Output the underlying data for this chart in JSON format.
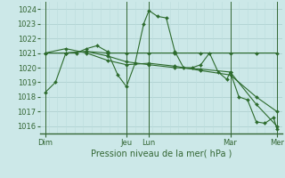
{
  "background_color": "#cce8e8",
  "grid_color_h": "#aacccc",
  "grid_color_v": "#bbdddd",
  "day_line_color": "#336633",
  "line_color": "#2d6b2d",
  "ylabel_text": "Pression niveau de la mer( hPa )",
  "xlim": [
    0,
    7.0
  ],
  "ylim": [
    1015.5,
    1024.5
  ],
  "yticks": [
    1016,
    1017,
    1018,
    1019,
    1020,
    1021,
    1022,
    1023,
    1024
  ],
  "day_positions": [
    0.15,
    2.5,
    3.15,
    5.5,
    6.85
  ],
  "day_labels": [
    "Dim",
    "Jeu",
    "Lun",
    "Mar",
    "Mer"
  ],
  "day_vlines": [
    0.15,
    2.5,
    3.15,
    5.5,
    6.85
  ],
  "num_vcols": 28,
  "series1": {
    "x": [
      0.15,
      0.45,
      0.75,
      1.05,
      1.35,
      1.65,
      1.95,
      2.25,
      2.5,
      2.75,
      3.0,
      3.15,
      3.4,
      3.65,
      3.9,
      4.15,
      4.4,
      4.65,
      4.9,
      5.15,
      5.4,
      5.5,
      5.75,
      6.0,
      6.25,
      6.5,
      6.75,
      6.85
    ],
    "y": [
      1018.3,
      1019.0,
      1021.0,
      1021.0,
      1021.3,
      1021.5,
      1021.1,
      1019.5,
      1018.7,
      1020.3,
      1023.0,
      1023.9,
      1023.5,
      1023.4,
      1021.1,
      1020.0,
      1020.0,
      1020.2,
      1021.0,
      1019.7,
      1019.2,
      1019.7,
      1018.0,
      1017.8,
      1016.3,
      1016.2,
      1016.6,
      1015.8
    ]
  },
  "series2": {
    "x": [
      0.15,
      0.75,
      1.35,
      1.95,
      2.5,
      3.15,
      3.9,
      4.65,
      5.5,
      6.25,
      6.85
    ],
    "y": [
      1021.0,
      1021.0,
      1021.1,
      1021.0,
      1021.0,
      1021.0,
      1021.0,
      1021.0,
      1021.0,
      1021.0,
      1021.0
    ]
  },
  "series3": {
    "x": [
      0.15,
      0.75,
      1.35,
      1.95,
      2.5,
      3.15,
      3.9,
      4.65,
      5.5,
      6.25,
      6.85
    ],
    "y": [
      1021.0,
      1021.3,
      1021.0,
      1020.5,
      1020.2,
      1020.3,
      1020.1,
      1019.8,
      1019.5,
      1018.0,
      1017.0
    ]
  },
  "series4": {
    "x": [
      0.15,
      0.75,
      1.35,
      1.95,
      2.5,
      3.15,
      3.9,
      4.65,
      5.5,
      6.25,
      6.85
    ],
    "y": [
      1021.0,
      1021.0,
      1021.1,
      1020.8,
      1020.4,
      1020.2,
      1020.0,
      1019.9,
      1019.7,
      1017.5,
      1016.0
    ]
  }
}
